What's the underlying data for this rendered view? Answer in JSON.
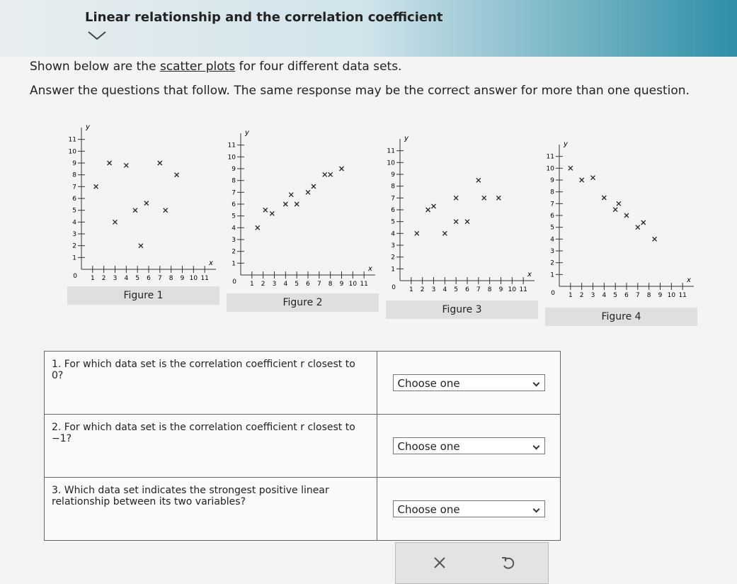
{
  "header": {
    "title": "Linear relationship and the correlation coefficient"
  },
  "intro": {
    "line1": [
      "Shown below are the ",
      "scatter plots",
      " for four different data sets."
    ],
    "line2": "Answer the questions that follow. The same response may be the correct answer for more than one question."
  },
  "axes": {
    "xlabel": "x",
    "ylabel": "y",
    "origin": 0,
    "lim": [
      0,
      12
    ],
    "xticks": [
      1,
      2,
      3,
      4,
      5,
      6,
      7,
      8,
      9,
      10,
      11
    ],
    "yticks": [
      1,
      2,
      3,
      4,
      5,
      6,
      7,
      8,
      9,
      10,
      11
    ]
  },
  "figures": [
    {
      "label": "Figure 1",
      "x": [
        2.5,
        4,
        7,
        8.5,
        1.3,
        5.8,
        4.8,
        7.5,
        3,
        5.3
      ],
      "y": [
        9,
        8.8,
        9,
        8,
        7,
        5.6,
        5,
        5,
        4,
        2
      ]
    },
    {
      "label": "Figure 2",
      "x": [
        1.5,
        2.2,
        2.8,
        4,
        4.5,
        5,
        6,
        6.5,
        7.5,
        8,
        9
      ],
      "y": [
        4,
        5.5,
        5.2,
        6,
        6.8,
        6,
        7,
        7.5,
        8.5,
        8.5,
        9
      ]
    },
    {
      "label": "Figure 3",
      "x": [
        1.5,
        2.5,
        3,
        4,
        5,
        6,
        5,
        7,
        7.5,
        8.8
      ],
      "y": [
        4,
        6,
        6.3,
        4,
        5,
        5,
        7,
        8.5,
        7,
        7
      ]
    },
    {
      "label": "Figure 4",
      "x": [
        1,
        2,
        3,
        4,
        5,
        5.3,
        6,
        7,
        7.5,
        8.5
      ],
      "y": [
        10,
        9,
        9.2,
        7.5,
        6.5,
        7,
        6,
        5,
        5.4,
        4
      ]
    }
  ],
  "questions": [
    {
      "text": "1. For which data set is the correlation coefficient r closest to 0?",
      "answer": "Choose one"
    },
    {
      "text": "2. For which data set is the correlation coefficient r closest to −1?",
      "answer": "Choose one"
    },
    {
      "text": "3. Which data set indicates the strongest positive linear relationship between its two variables?",
      "answer": "Choose one"
    }
  ]
}
